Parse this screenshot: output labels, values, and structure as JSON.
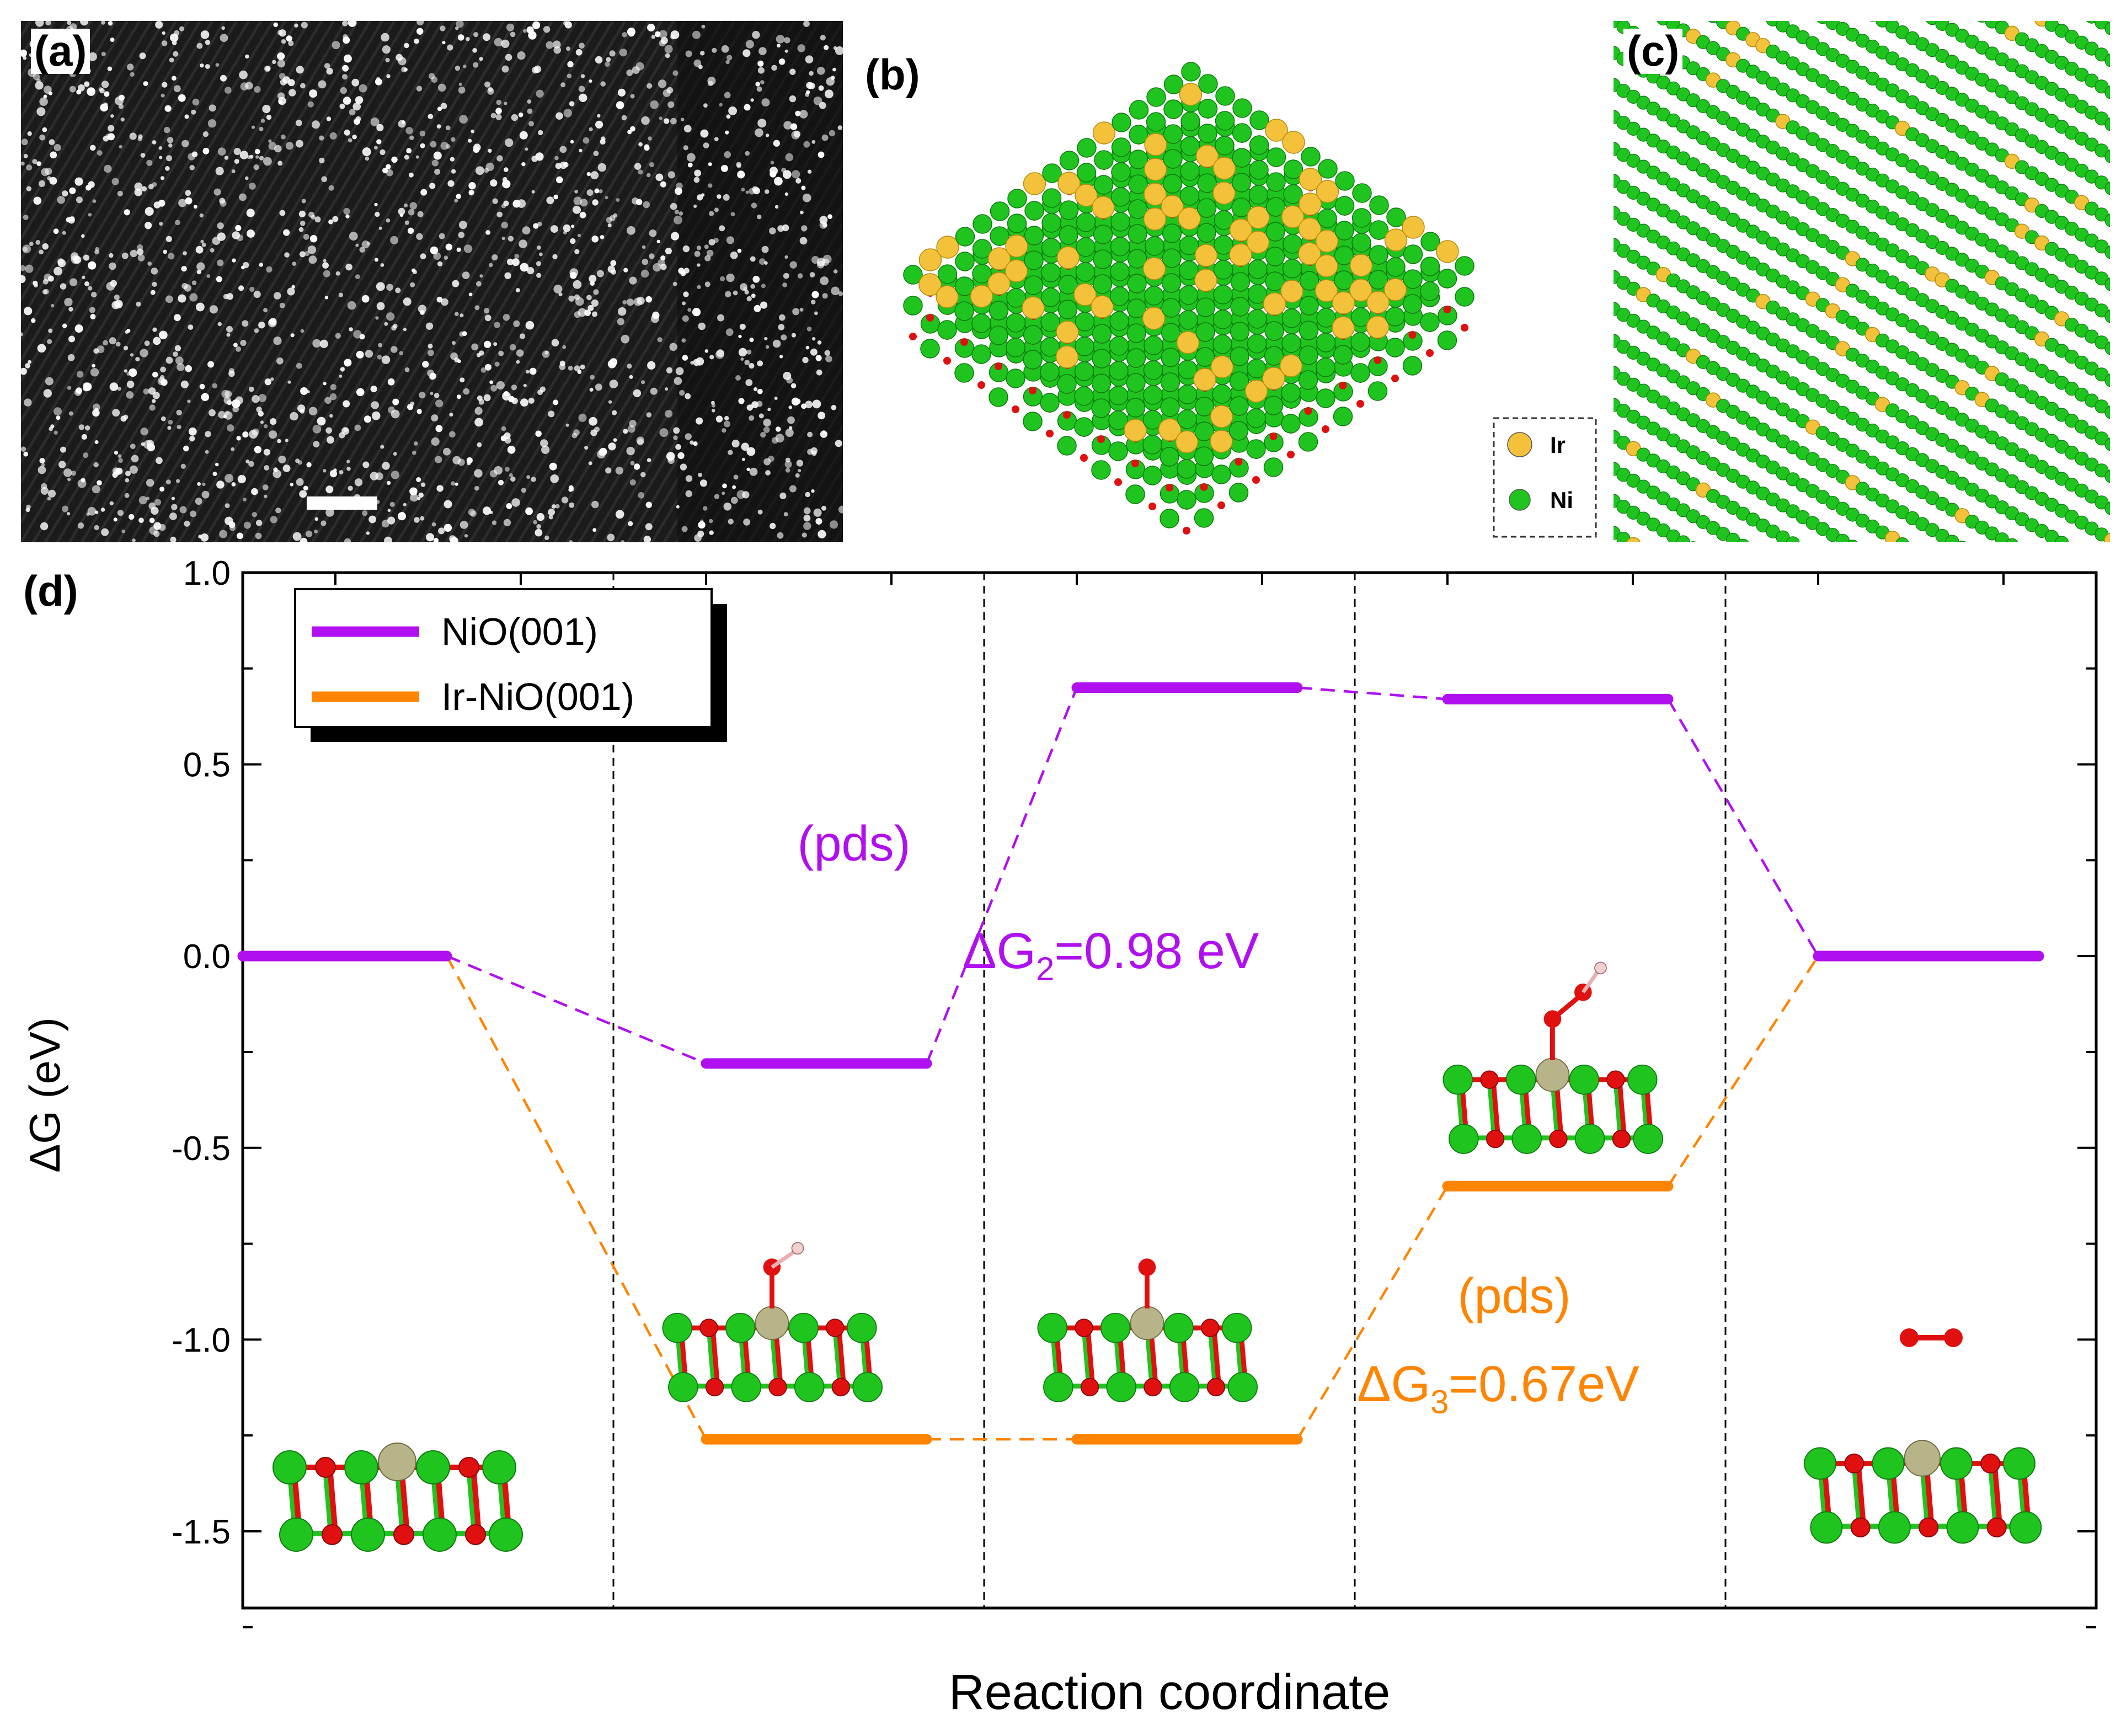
{
  "panels": {
    "a": {
      "label": "(a)"
    },
    "b": {
      "label": "(b)",
      "legend": [
        {
          "name": "Ir",
          "color": "#f4c23a"
        },
        {
          "name": "Ni",
          "color": "#1fc41f"
        }
      ]
    },
    "c": {
      "label": "(c)"
    },
    "d": {
      "label": "(d)"
    }
  },
  "colors": {
    "nio": "#b010f0",
    "irnio": "#ff8400",
    "ni": "#1fc41f",
    "o": "#e01010",
    "ir": "#f4c23a",
    "ir_adsorb": "#b8b48a"
  },
  "chart_data": {
    "type": "line",
    "title": "",
    "xlabel": "Reaction coordinate",
    "ylabel": "ΔG (eV)",
    "ylim": [
      -1.7,
      1.0
    ],
    "yticks": [
      1.0,
      0.5,
      0.0,
      -0.5,
      -1.0,
      -1.5
    ],
    "ytick_labels": [
      "1.0",
      "0.5",
      "0.0",
      "-0.5",
      "-1.0",
      "-1.5"
    ],
    "steps": 5,
    "series": [
      {
        "name": "NiO(001)",
        "color": "#b010f0",
        "values": [
          0.0,
          -0.28,
          0.7,
          0.67,
          0.0
        ]
      },
      {
        "name": "Ir-NiO(001)",
        "color": "#ff8400",
        "values": [
          0.0,
          -1.26,
          -1.26,
          -0.6,
          0.0
        ]
      }
    ],
    "annotations": {
      "pds1": "(pds)",
      "dg2_prefix": "ΔG",
      "dg2_sub": "2",
      "dg2_suffix": "=0.98 eV",
      "pds2": "(pds)",
      "dg3_prefix": "ΔG",
      "dg3_sub": "3",
      "dg3_suffix": "=0.67eV"
    }
  }
}
